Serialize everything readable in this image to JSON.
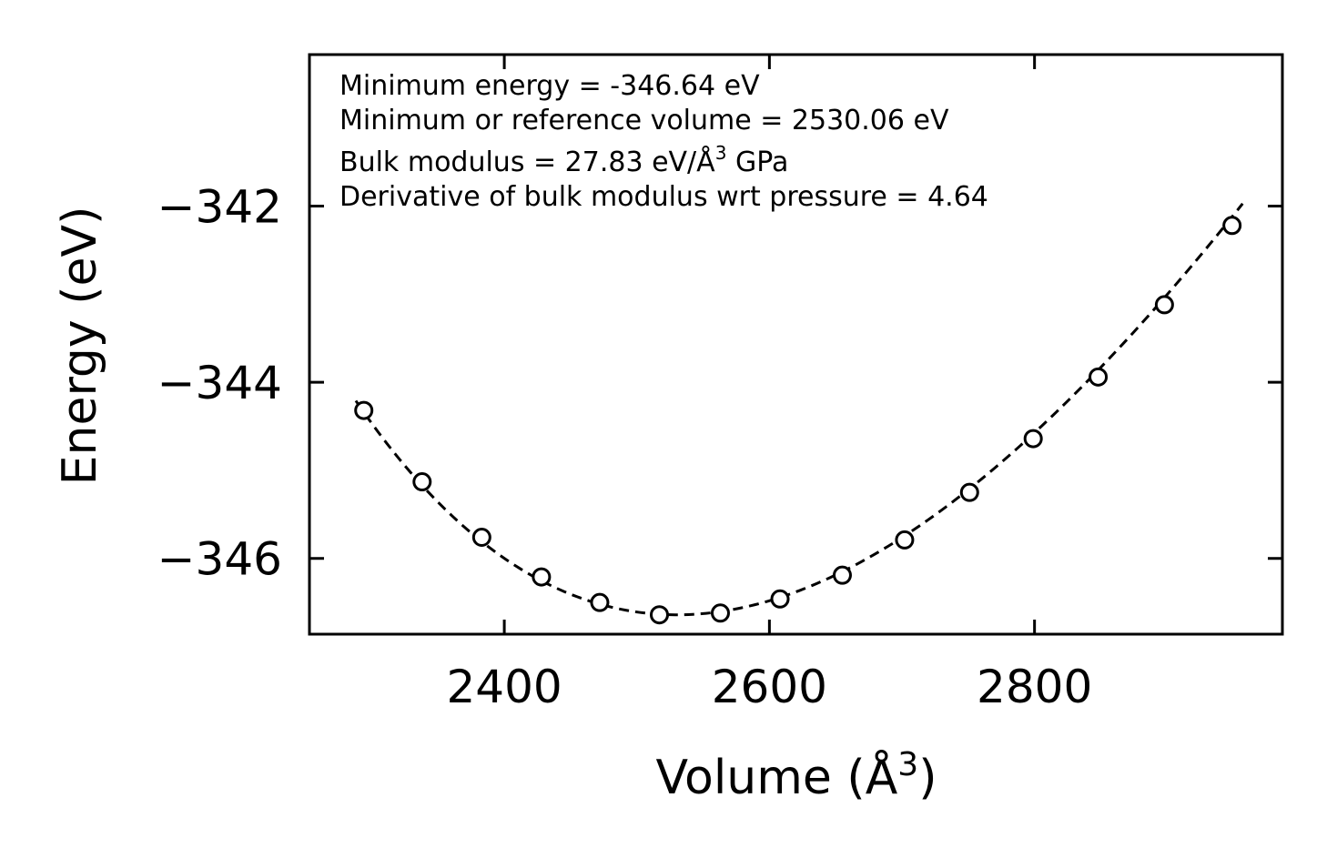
{
  "chart_data": {
    "type": "scatter",
    "title": "",
    "xlabel": "Volume (Å",
    "xlabel_sup": "3",
    "xlabel_end": ")",
    "ylabel": "Energy (eV)",
    "xlim": [
      2253,
      2987
    ],
    "ylim": [
      -346.86,
      -340.28
    ],
    "xticks": [
      2400,
      2600,
      2800
    ],
    "xtick_labels": [
      "2400",
      "2600",
      "2800"
    ],
    "yticks": [
      -342,
      -344,
      -346
    ],
    "ytick_labels": [
      "−342",
      "−344",
      "−346"
    ],
    "grid": false,
    "series": [
      {
        "name": "data",
        "marker": "open-circle",
        "x": [
          2294,
          2338,
          2383,
          2428,
          2472,
          2517,
          2563,
          2608,
          2655,
          2702,
          2751,
          2799,
          2848,
          2898,
          2949
        ],
        "y": [
          -344.32,
          -345.13,
          -345.76,
          -346.21,
          -346.5,
          -346.64,
          -346.62,
          -346.46,
          -346.19,
          -345.79,
          -345.25,
          -344.64,
          -343.94,
          -343.12,
          -342.22
        ]
      },
      {
        "name": "fit",
        "line": "dashed",
        "params": {
          "E0": -346.64,
          "V0": 2530.06,
          "B0": 27.83,
          "B0p": 4.64
        },
        "x_range": [
          2288,
          2957
        ]
      }
    ],
    "annotations": [
      {
        "text": "Minimum energy = -346.64 eV"
      },
      {
        "text": "Minimum or reference volume = 2530.06 eV"
      },
      {
        "text": "Bulk modulus = 27.83 eV/Å",
        "sup": "3",
        "suffix": " GPa"
      },
      {
        "text": "Derivative of bulk modulus wrt pressure = 4.64"
      }
    ]
  }
}
